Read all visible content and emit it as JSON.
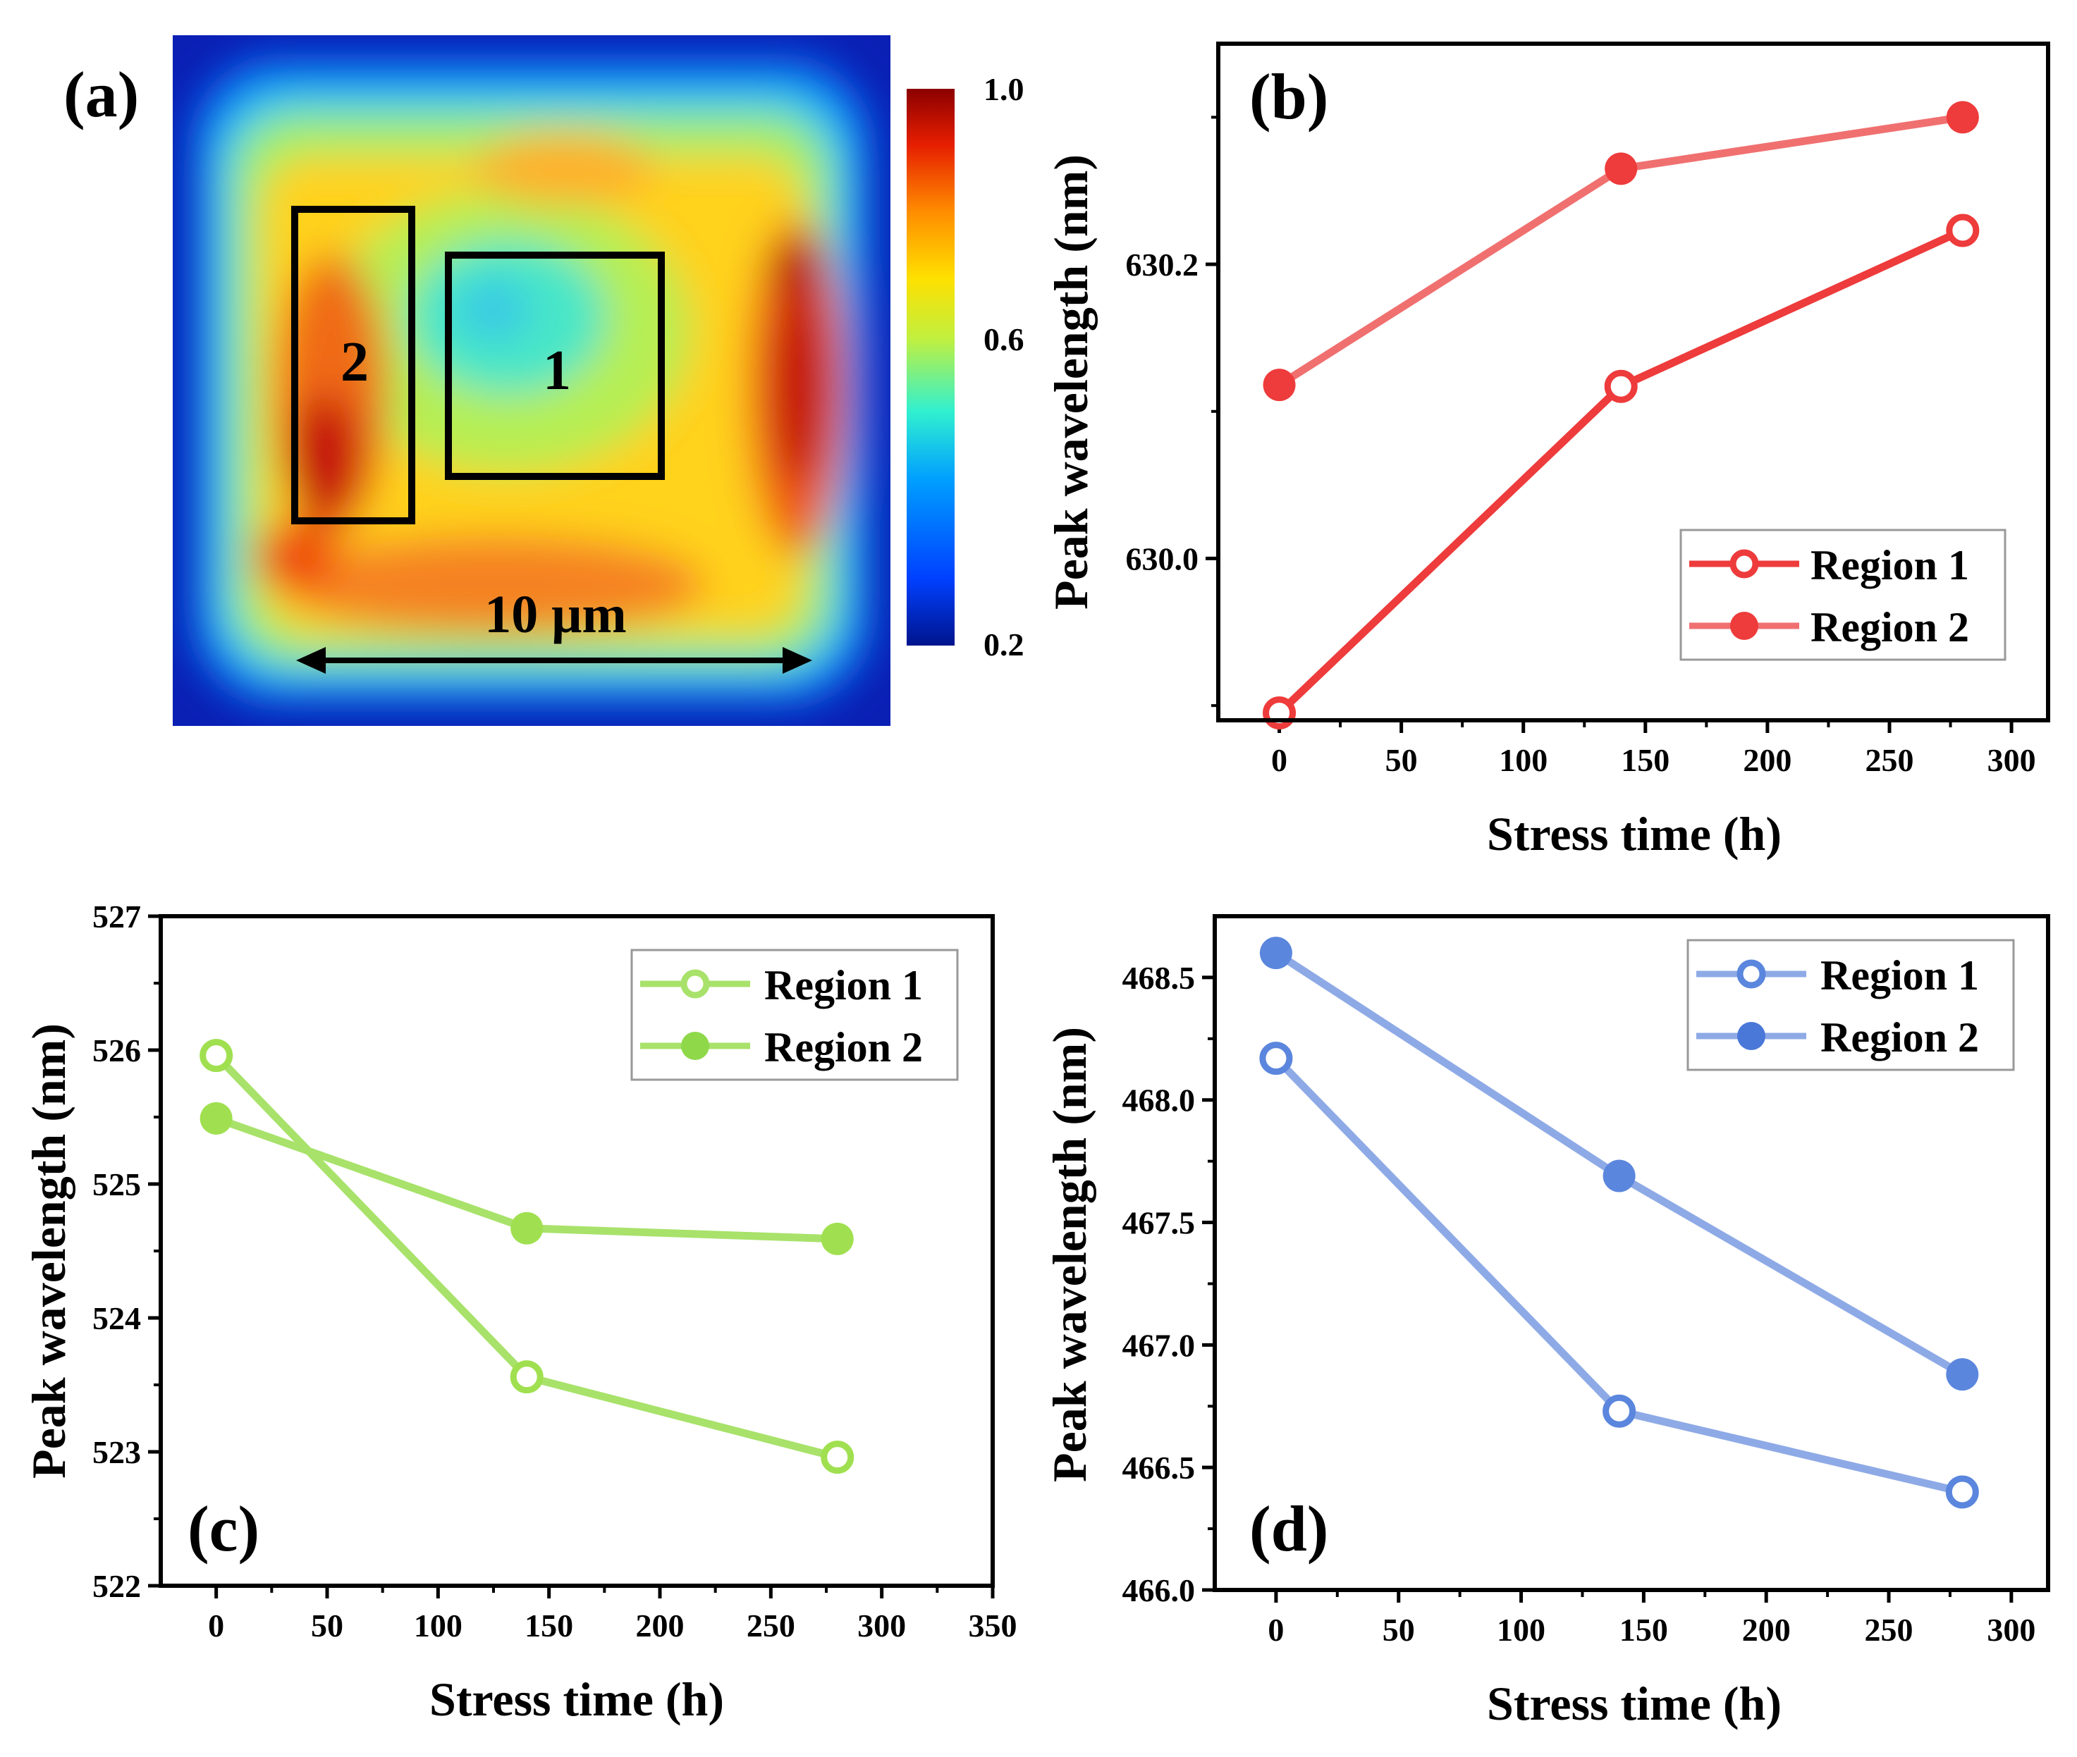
{
  "chart_data": [
    {
      "panel": "(a)",
      "type": "heatmap",
      "colorbar": {
        "ticks": [
          "1.0",
          "0.6",
          "0.2"
        ],
        "min": 0.2,
        "max": 1.0
      },
      "regions": [
        {
          "label": "1"
        },
        {
          "label": "2"
        }
      ],
      "scale_bar": "10 μm"
    },
    {
      "panel": "(b)",
      "type": "line",
      "xlabel": "Stress time (h)",
      "ylabel": "Peak wavelength (nm)",
      "xlim": [
        -25,
        315
      ],
      "ylim": [
        629.89,
        630.35
      ],
      "xticks": [
        0,
        50,
        100,
        150,
        200,
        250,
        300
      ],
      "yticks": [
        630.0,
        630.2
      ],
      "ytick_labels": [
        "630.0",
        "630.2"
      ],
      "x": [
        0,
        140,
        280
      ],
      "legend_position": "bottom-right",
      "color": "#ee3b3b",
      "series": [
        {
          "name": "Region 1",
          "marker": "open",
          "color": "#ee3b3b",
          "values": [
            629.895,
            630.117,
            630.223
          ]
        },
        {
          "name": "Region 2",
          "marker": "filled",
          "color": "#f07070",
          "values": [
            630.118,
            630.265,
            630.3
          ]
        }
      ]
    },
    {
      "panel": "(c)",
      "type": "line",
      "xlabel": "Stress time (h)",
      "ylabel": "Peak wavelength (nm)",
      "xlim": [
        -25,
        350
      ],
      "ylim": [
        522,
        527
      ],
      "xticks": [
        0,
        50,
        100,
        150,
        200,
        250,
        300,
        350
      ],
      "yticks": [
        522,
        523,
        524,
        525,
        526,
        527
      ],
      "ytick_labels": [
        "522",
        "523",
        "524",
        "525",
        "526",
        "527"
      ],
      "x": [
        0,
        140,
        280
      ],
      "legend_position": "top-right",
      "color": "#a0e050",
      "series": [
        {
          "name": "Region 1",
          "marker": "open",
          "color": "#a8e26a",
          "values": [
            525.96,
            523.56,
            522.96
          ]
        },
        {
          "name": "Region 2",
          "marker": "filled",
          "color": "#a8e26a",
          "values": [
            525.49,
            524.67,
            524.59
          ]
        }
      ]
    },
    {
      "panel": "(d)",
      "type": "line",
      "xlabel": "Stress time (h)",
      "ylabel": "Peak wavelength (nm)",
      "xlim": [
        -25,
        315
      ],
      "ylim": [
        466.0,
        468.75
      ],
      "xticks": [
        0,
        50,
        100,
        150,
        200,
        250,
        300
      ],
      "yticks": [
        466.0,
        466.5,
        467.0,
        467.5,
        468.0,
        468.5
      ],
      "ytick_labels": [
        "466.0",
        "466.5",
        "467.0",
        "467.5",
        "468.0",
        "468.5"
      ],
      "x": [
        0,
        140,
        280
      ],
      "legend_position": "top-right",
      "color": "#5b86dd",
      "series": [
        {
          "name": "Region 1",
          "marker": "open",
          "color": "#8eaae6",
          "values": [
            468.17,
            466.73,
            466.4
          ]
        },
        {
          "name": "Region 2",
          "marker": "filled",
          "color": "#8eaae6",
          "values": [
            468.6,
            467.69,
            466.88
          ]
        }
      ]
    }
  ]
}
